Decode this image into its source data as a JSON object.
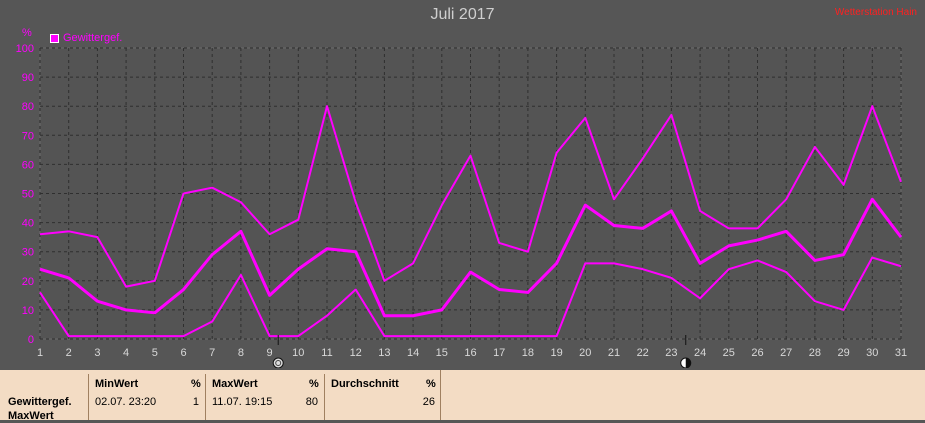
{
  "header": {
    "title": "Juli 2017",
    "credit": "Wetterstation Hain",
    "unit": "%",
    "legend": "Gewittergef."
  },
  "colors": {
    "background": "#565656",
    "plot": "#545454",
    "series": "#ff00ff",
    "table_bg": "#f3dcc4"
  },
  "chart_data": {
    "type": "line",
    "title": "Juli 2017",
    "ylabel": "%",
    "ylim": [
      0,
      100
    ],
    "yticks": [
      0,
      10,
      20,
      30,
      40,
      50,
      60,
      70,
      80,
      90,
      100
    ],
    "x": [
      1,
      2,
      3,
      4,
      5,
      6,
      7,
      8,
      9,
      10,
      11,
      12,
      13,
      14,
      15,
      16,
      17,
      18,
      19,
      20,
      21,
      22,
      23,
      24,
      25,
      26,
      27,
      28,
      29,
      30,
      31
    ],
    "grid": true,
    "legend_position": "top-left",
    "moon_markers": [
      {
        "day": 9.3,
        "phase": "full-moon"
      },
      {
        "day": 23.5,
        "phase": "new-moon"
      }
    ],
    "series": [
      {
        "name": "Gewittergef.",
        "role": "max",
        "values": [
          36,
          37,
          35,
          18,
          20,
          50,
          52,
          47,
          36,
          41,
          80,
          47,
          20,
          26,
          46,
          63,
          33,
          30,
          64,
          76,
          48,
          62,
          77,
          44,
          38,
          38,
          48,
          66,
          53,
          80,
          54
        ]
      },
      {
        "name": "Gewittergef.",
        "role": "avg",
        "values": [
          24,
          21,
          13,
          10,
          9,
          17,
          29,
          37,
          15,
          24,
          31,
          30,
          8,
          8,
          10,
          23,
          17,
          16,
          26,
          46,
          39,
          38,
          44,
          26,
          32,
          34,
          37,
          27,
          29,
          48,
          35
        ]
      },
      {
        "name": "Gewittergef.",
        "role": "min",
        "values": [
          16,
          1,
          1,
          1,
          1,
          1,
          6,
          22,
          1,
          1,
          8,
          17,
          1,
          1,
          1,
          1,
          1,
          1,
          1,
          26,
          26,
          24,
          21,
          14,
          24,
          27,
          23,
          13,
          10,
          28,
          25
        ]
      }
    ]
  },
  "table": {
    "row_label_1": "Gewittergef.",
    "row_label_2": "MaxWert",
    "min_header": "MinWert",
    "min_unit": "%",
    "min_date": "02.07.  23:20",
    "min_value": "1",
    "max_header": "MaxWert",
    "max_unit": "%",
    "max_date": "11.07.  19:15",
    "max_value": "80",
    "avg_header": "Durchschnitt",
    "avg_unit": "%",
    "avg_value": "26"
  }
}
